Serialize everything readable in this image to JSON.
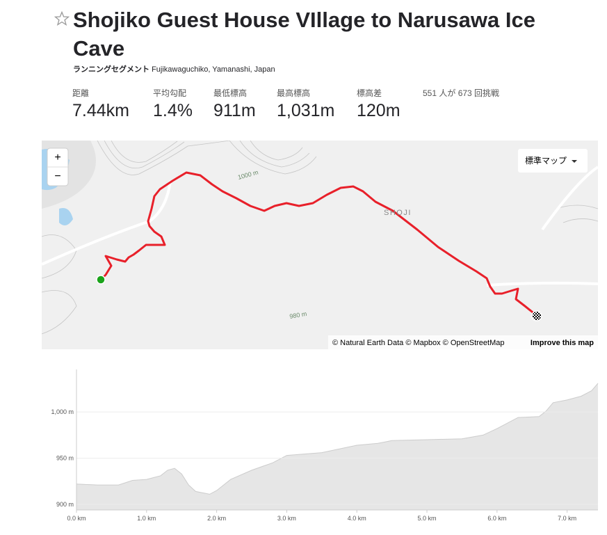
{
  "header": {
    "title": "Shojiko Guest House VIllage to Narusawa Ice Cave",
    "segment_type": "ランニングセグメント",
    "location": "Fujikawaguchiko, Yamanashi, Japan"
  },
  "stats": [
    {
      "label": "距離",
      "value": "7.44km"
    },
    {
      "label": "平均勾配",
      "value": "1.4%"
    },
    {
      "label": "最低標高",
      "value": "911m"
    },
    {
      "label": "最高標高",
      "value": "1,031m"
    },
    {
      "label": "標高差",
      "value": "120m"
    }
  ],
  "attempts": "551 人が 673 回挑戦",
  "map": {
    "zoom_in": "+",
    "zoom_out": "−",
    "style_menu": "標準マップ",
    "labels": [
      "1000 m",
      "SHOJI",
      "980 m"
    ],
    "attribution": "© Natural Earth Data © Mapbox © OpenStreetMap",
    "improve": "Improve this map"
  },
  "chart_data": {
    "type": "area",
    "color": "#e6e6e6",
    "line_color": "#cccccc",
    "x": [
      0,
      0.3,
      0.6,
      0.8,
      1.0,
      1.2,
      1.3,
      1.4,
      1.5,
      1.6,
      1.7,
      1.9,
      2.0,
      2.2,
      2.5,
      2.8,
      3.0,
      3.5,
      4.0,
      4.3,
      4.5,
      5.0,
      5.5,
      5.8,
      6.0,
      6.3,
      6.6,
      6.7,
      6.8,
      7.0,
      7.2,
      7.35,
      7.44
    ],
    "values": [
      922,
      921,
      921,
      926,
      927,
      931,
      937,
      939,
      933,
      921,
      914,
      911,
      915,
      927,
      937,
      945,
      953,
      956,
      964,
      966,
      969,
      970,
      971,
      975,
      982,
      994,
      995,
      1001,
      1010,
      1013,
      1017,
      1023,
      1031
    ],
    "xlim": [
      0,
      7.44
    ],
    "ylim": [
      894,
      1046
    ],
    "xticks": [
      {
        "value": 0,
        "label": "0.0 km"
      },
      {
        "value": 1,
        "label": "1.0 km"
      },
      {
        "value": 2,
        "label": "2.0 km"
      },
      {
        "value": 3,
        "label": "3.0 km"
      },
      {
        "value": 4,
        "label": "4.0 km"
      },
      {
        "value": 5,
        "label": "5.0 km"
      },
      {
        "value": 6,
        "label": "6.0 km"
      },
      {
        "value": 7,
        "label": "7.0 km"
      }
    ],
    "yticks": [
      {
        "value": 900,
        "label": "900 m"
      },
      {
        "value": 950,
        "label": "950 m"
      },
      {
        "value": 1000,
        "label": "1,000 m"
      }
    ],
    "grid": true
  }
}
